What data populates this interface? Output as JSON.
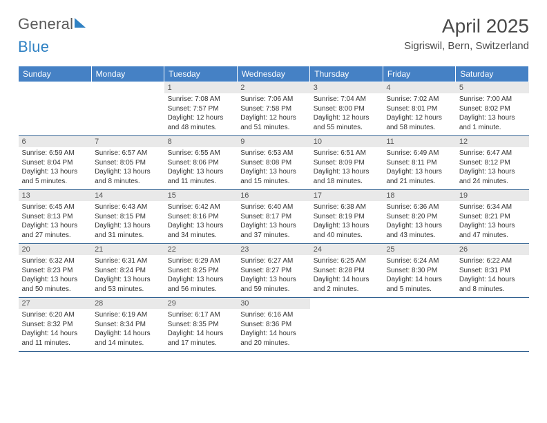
{
  "brand": {
    "part1": "General",
    "part2": "Blue"
  },
  "title": "April 2025",
  "location": "Sigriswil, Bern, Switzerland",
  "colors": {
    "header_bg": "#4581c5",
    "header_text": "#ffffff",
    "daynum_bg": "#e9e9e9",
    "rule": "#2f5f8f",
    "brand_grey": "#5a5a5a",
    "brand_blue": "#2f81c3"
  },
  "weekdays": [
    "Sunday",
    "Monday",
    "Tuesday",
    "Wednesday",
    "Thursday",
    "Friday",
    "Saturday"
  ],
  "weeks": [
    [
      {
        "n": "",
        "empty": true
      },
      {
        "n": "",
        "empty": true
      },
      {
        "n": "1",
        "sunrise": "Sunrise: 7:08 AM",
        "sunset": "Sunset: 7:57 PM",
        "daylight": "Daylight: 12 hours and 48 minutes."
      },
      {
        "n": "2",
        "sunrise": "Sunrise: 7:06 AM",
        "sunset": "Sunset: 7:58 PM",
        "daylight": "Daylight: 12 hours and 51 minutes."
      },
      {
        "n": "3",
        "sunrise": "Sunrise: 7:04 AM",
        "sunset": "Sunset: 8:00 PM",
        "daylight": "Daylight: 12 hours and 55 minutes."
      },
      {
        "n": "4",
        "sunrise": "Sunrise: 7:02 AM",
        "sunset": "Sunset: 8:01 PM",
        "daylight": "Daylight: 12 hours and 58 minutes."
      },
      {
        "n": "5",
        "sunrise": "Sunrise: 7:00 AM",
        "sunset": "Sunset: 8:02 PM",
        "daylight": "Daylight: 13 hours and 1 minute."
      }
    ],
    [
      {
        "n": "6",
        "sunrise": "Sunrise: 6:59 AM",
        "sunset": "Sunset: 8:04 PM",
        "daylight": "Daylight: 13 hours and 5 minutes."
      },
      {
        "n": "7",
        "sunrise": "Sunrise: 6:57 AM",
        "sunset": "Sunset: 8:05 PM",
        "daylight": "Daylight: 13 hours and 8 minutes."
      },
      {
        "n": "8",
        "sunrise": "Sunrise: 6:55 AM",
        "sunset": "Sunset: 8:06 PM",
        "daylight": "Daylight: 13 hours and 11 minutes."
      },
      {
        "n": "9",
        "sunrise": "Sunrise: 6:53 AM",
        "sunset": "Sunset: 8:08 PM",
        "daylight": "Daylight: 13 hours and 15 minutes."
      },
      {
        "n": "10",
        "sunrise": "Sunrise: 6:51 AM",
        "sunset": "Sunset: 8:09 PM",
        "daylight": "Daylight: 13 hours and 18 minutes."
      },
      {
        "n": "11",
        "sunrise": "Sunrise: 6:49 AM",
        "sunset": "Sunset: 8:11 PM",
        "daylight": "Daylight: 13 hours and 21 minutes."
      },
      {
        "n": "12",
        "sunrise": "Sunrise: 6:47 AM",
        "sunset": "Sunset: 8:12 PM",
        "daylight": "Daylight: 13 hours and 24 minutes."
      }
    ],
    [
      {
        "n": "13",
        "sunrise": "Sunrise: 6:45 AM",
        "sunset": "Sunset: 8:13 PM",
        "daylight": "Daylight: 13 hours and 27 minutes."
      },
      {
        "n": "14",
        "sunrise": "Sunrise: 6:43 AM",
        "sunset": "Sunset: 8:15 PM",
        "daylight": "Daylight: 13 hours and 31 minutes."
      },
      {
        "n": "15",
        "sunrise": "Sunrise: 6:42 AM",
        "sunset": "Sunset: 8:16 PM",
        "daylight": "Daylight: 13 hours and 34 minutes."
      },
      {
        "n": "16",
        "sunrise": "Sunrise: 6:40 AM",
        "sunset": "Sunset: 8:17 PM",
        "daylight": "Daylight: 13 hours and 37 minutes."
      },
      {
        "n": "17",
        "sunrise": "Sunrise: 6:38 AM",
        "sunset": "Sunset: 8:19 PM",
        "daylight": "Daylight: 13 hours and 40 minutes."
      },
      {
        "n": "18",
        "sunrise": "Sunrise: 6:36 AM",
        "sunset": "Sunset: 8:20 PM",
        "daylight": "Daylight: 13 hours and 43 minutes."
      },
      {
        "n": "19",
        "sunrise": "Sunrise: 6:34 AM",
        "sunset": "Sunset: 8:21 PM",
        "daylight": "Daylight: 13 hours and 47 minutes."
      }
    ],
    [
      {
        "n": "20",
        "sunrise": "Sunrise: 6:32 AM",
        "sunset": "Sunset: 8:23 PM",
        "daylight": "Daylight: 13 hours and 50 minutes."
      },
      {
        "n": "21",
        "sunrise": "Sunrise: 6:31 AM",
        "sunset": "Sunset: 8:24 PM",
        "daylight": "Daylight: 13 hours and 53 minutes."
      },
      {
        "n": "22",
        "sunrise": "Sunrise: 6:29 AM",
        "sunset": "Sunset: 8:25 PM",
        "daylight": "Daylight: 13 hours and 56 minutes."
      },
      {
        "n": "23",
        "sunrise": "Sunrise: 6:27 AM",
        "sunset": "Sunset: 8:27 PM",
        "daylight": "Daylight: 13 hours and 59 minutes."
      },
      {
        "n": "24",
        "sunrise": "Sunrise: 6:25 AM",
        "sunset": "Sunset: 8:28 PM",
        "daylight": "Daylight: 14 hours and 2 minutes."
      },
      {
        "n": "25",
        "sunrise": "Sunrise: 6:24 AM",
        "sunset": "Sunset: 8:30 PM",
        "daylight": "Daylight: 14 hours and 5 minutes."
      },
      {
        "n": "26",
        "sunrise": "Sunrise: 6:22 AM",
        "sunset": "Sunset: 8:31 PM",
        "daylight": "Daylight: 14 hours and 8 minutes."
      }
    ],
    [
      {
        "n": "27",
        "sunrise": "Sunrise: 6:20 AM",
        "sunset": "Sunset: 8:32 PM",
        "daylight": "Daylight: 14 hours and 11 minutes."
      },
      {
        "n": "28",
        "sunrise": "Sunrise: 6:19 AM",
        "sunset": "Sunset: 8:34 PM",
        "daylight": "Daylight: 14 hours and 14 minutes."
      },
      {
        "n": "29",
        "sunrise": "Sunrise: 6:17 AM",
        "sunset": "Sunset: 8:35 PM",
        "daylight": "Daylight: 14 hours and 17 minutes."
      },
      {
        "n": "30",
        "sunrise": "Sunrise: 6:16 AM",
        "sunset": "Sunset: 8:36 PM",
        "daylight": "Daylight: 14 hours and 20 minutes."
      },
      {
        "n": "",
        "empty": true
      },
      {
        "n": "",
        "empty": true
      },
      {
        "n": "",
        "empty": true
      }
    ]
  ]
}
